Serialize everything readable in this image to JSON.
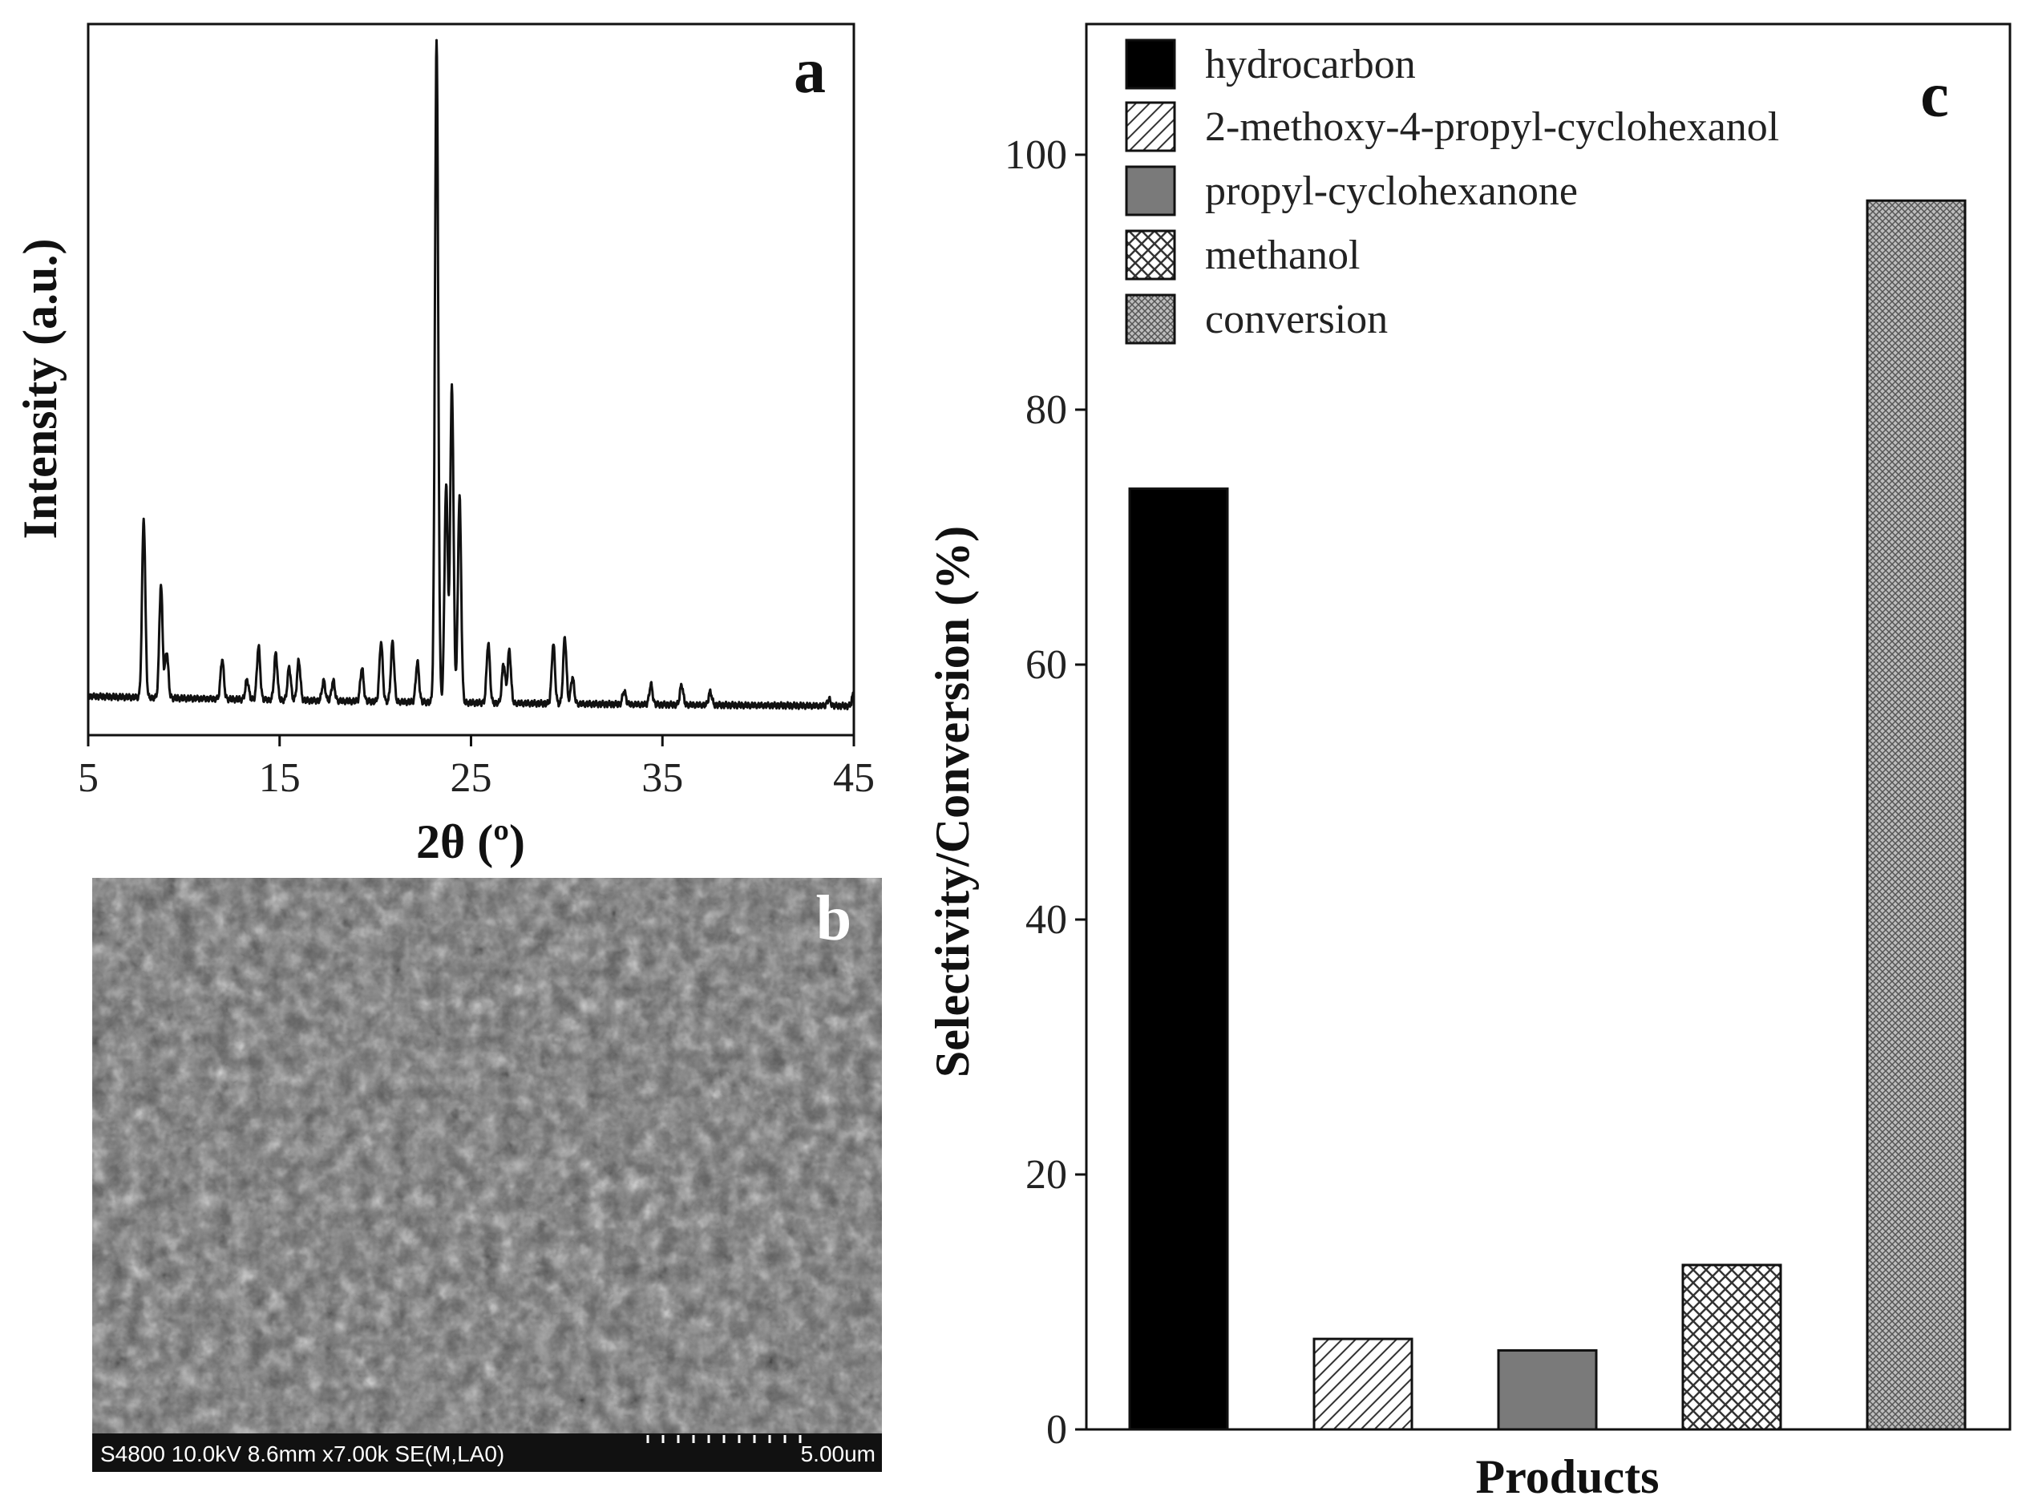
{
  "panels": {
    "a": {
      "letter": "a"
    },
    "b": {
      "letter": "b"
    },
    "c": {
      "letter": "c"
    }
  },
  "sem": {
    "info": "S4800 10.0kV 8.6mm x7.00k SE(M,LA0)",
    "scale": "5.00um"
  },
  "chart_data": [
    {
      "type": "line",
      "xlabel": "2θ (º)",
      "ylabel": "Intensity (a.u.)",
      "xlim": [
        5,
        45
      ],
      "xticks": [
        "5",
        "15",
        "25",
        "35",
        "45"
      ],
      "grid": false,
      "baseline": 0.02,
      "peak_width": 0.12,
      "peaks": [
        {
          "x": 7.9,
          "y": 0.27
        },
        {
          "x": 8.8,
          "y": 0.17
        },
        {
          "x": 9.1,
          "y": 0.07
        },
        {
          "x": 12.0,
          "y": 0.06
        },
        {
          "x": 13.3,
          "y": 0.03
        },
        {
          "x": 13.9,
          "y": 0.08
        },
        {
          "x": 14.8,
          "y": 0.07
        },
        {
          "x": 15.5,
          "y": 0.05
        },
        {
          "x": 16.0,
          "y": 0.06
        },
        {
          "x": 17.3,
          "y": 0.03
        },
        {
          "x": 17.8,
          "y": 0.03
        },
        {
          "x": 19.3,
          "y": 0.05
        },
        {
          "x": 20.3,
          "y": 0.09
        },
        {
          "x": 20.9,
          "y": 0.09
        },
        {
          "x": 22.2,
          "y": 0.06
        },
        {
          "x": 23.2,
          "y": 1.0
        },
        {
          "x": 23.7,
          "y": 0.33
        },
        {
          "x": 24.0,
          "y": 0.48
        },
        {
          "x": 24.4,
          "y": 0.31
        },
        {
          "x": 25.9,
          "y": 0.09
        },
        {
          "x": 26.7,
          "y": 0.06
        },
        {
          "x": 27.0,
          "y": 0.08
        },
        {
          "x": 29.3,
          "y": 0.09
        },
        {
          "x": 29.9,
          "y": 0.1
        },
        {
          "x": 30.3,
          "y": 0.04
        },
        {
          "x": 33.0,
          "y": 0.02
        },
        {
          "x": 34.4,
          "y": 0.03
        },
        {
          "x": 36.0,
          "y": 0.03
        },
        {
          "x": 37.5,
          "y": 0.02
        },
        {
          "x": 43.7,
          "y": 0.01
        },
        {
          "x": 45.0,
          "y": 0.02
        }
      ]
    },
    {
      "type": "bar",
      "xlabel": "Products",
      "ylabel": "Selectivity/Conversion (%)",
      "ylim": [
        0,
        110
      ],
      "yticks": [
        0,
        20,
        40,
        60,
        80,
        100
      ],
      "grid": false,
      "legend_position": "top-left",
      "series": [
        {
          "name": "hydrocarbon",
          "value": 73.8,
          "pattern": "solid-black"
        },
        {
          "name": "2-methoxy-4-propyl-cyclohexanol",
          "value": 7.1,
          "pattern": "diagonal-hatch"
        },
        {
          "name": "propyl-cyclohexanone",
          "value": 6.2,
          "pattern": "solid-gray"
        },
        {
          "name": "methanol",
          "value": 12.9,
          "pattern": "crosshatch"
        },
        {
          "name": "conversion",
          "value": 96.4,
          "pattern": "fine-crosshatch"
        }
      ]
    }
  ]
}
